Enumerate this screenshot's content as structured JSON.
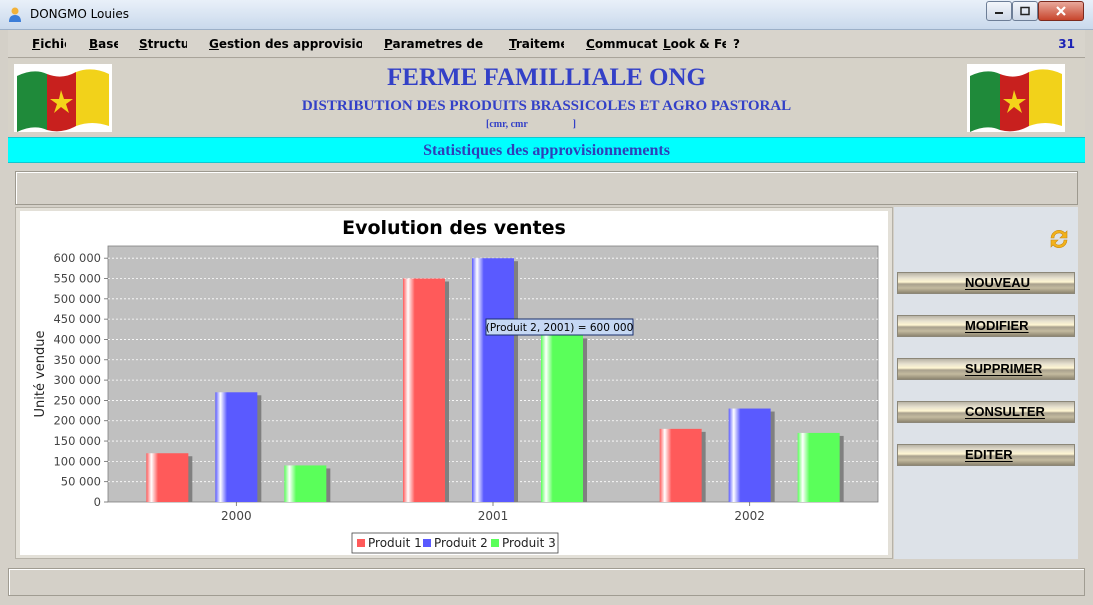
{
  "window": {
    "title": "DONGMO Louies"
  },
  "menu": {
    "items": [
      "Fichier",
      "Base",
      "Structure",
      "Gestion des approvisionnements",
      "Parametres de vente",
      "Traitement",
      "Commucation",
      "Look & Feel",
      "?"
    ],
    "count": "31"
  },
  "header": {
    "title": "FERME FAMILLIALE ONG",
    "subtitle": "DISTRIBUTION DES PRODUITS BRASSICOLES ET AGRO PASTORAL",
    "small": "[cmr, cmr                  ]"
  },
  "section": {
    "title": "Statistiques des approvisionnements"
  },
  "actions": {
    "nouveau": "NOUVEAU",
    "modifier": "MODIFIER",
    "supprimer": "SUPPRIMER",
    "consulter": "CONSULTER",
    "editer": "EDITER"
  },
  "chart_data": {
    "type": "bar",
    "title": "Evolution des ventes",
    "xlabel": "",
    "ylabel": "Unité vendue",
    "categories": [
      "2000",
      "2001",
      "2002"
    ],
    "series": [
      {
        "name": "Produit 1",
        "values": [
          120000,
          550000,
          180000
        ],
        "color": "#ff5a5a"
      },
      {
        "name": "Produit 2",
        "values": [
          270000,
          600000,
          230000
        ],
        "color": "#5a5aff"
      },
      {
        "name": "Produit 3",
        "values": [
          90000,
          410000,
          170000
        ],
        "color": "#5aff5a"
      }
    ],
    "ylim": [
      0,
      630000
    ],
    "yticks": [
      "0",
      "50 000",
      "100 000",
      "150 000",
      "200 000",
      "250 000",
      "300 000",
      "350 000",
      "400 000",
      "450 000",
      "500 000",
      "550 000",
      "600 000"
    ],
    "ytick_values": [
      0,
      50000,
      100000,
      150000,
      200000,
      250000,
      300000,
      350000,
      400000,
      450000,
      500000,
      550000,
      600000
    ],
    "grid": true,
    "legend": "bottom",
    "tooltip": "(Produit 2, 2001) = 600 000"
  }
}
